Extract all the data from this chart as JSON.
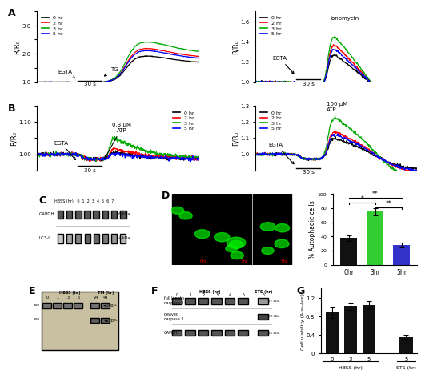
{
  "panel_labels": [
    "A",
    "B",
    "C",
    "D",
    "E",
    "F",
    "G"
  ],
  "colors": {
    "0hr": "#000000",
    "2hr": "#ff0000",
    "3hr": "#00aa00",
    "5hr": "#0000ff"
  },
  "panel_D_bar": {
    "categories": [
      "0hr",
      "3hr",
      "5hr"
    ],
    "values": [
      38,
      75,
      28
    ],
    "errors": [
      4,
      5,
      3
    ],
    "colors": [
      "#111111",
      "#33cc33",
      "#3333cc"
    ],
    "ylabel": "% Autophagic cells",
    "ylim": [
      0,
      100
    ]
  },
  "panel_G": {
    "values": [
      0.88,
      1.02,
      1.05,
      0.35
    ],
    "errors": [
      0.12,
      0.08,
      0.08,
      0.04
    ],
    "bar_color": "#111111",
    "ylabel": "Cell viability (A490-A630)",
    "ylim": [
      0,
      1.4
    ]
  },
  "background_color": "#ffffff"
}
